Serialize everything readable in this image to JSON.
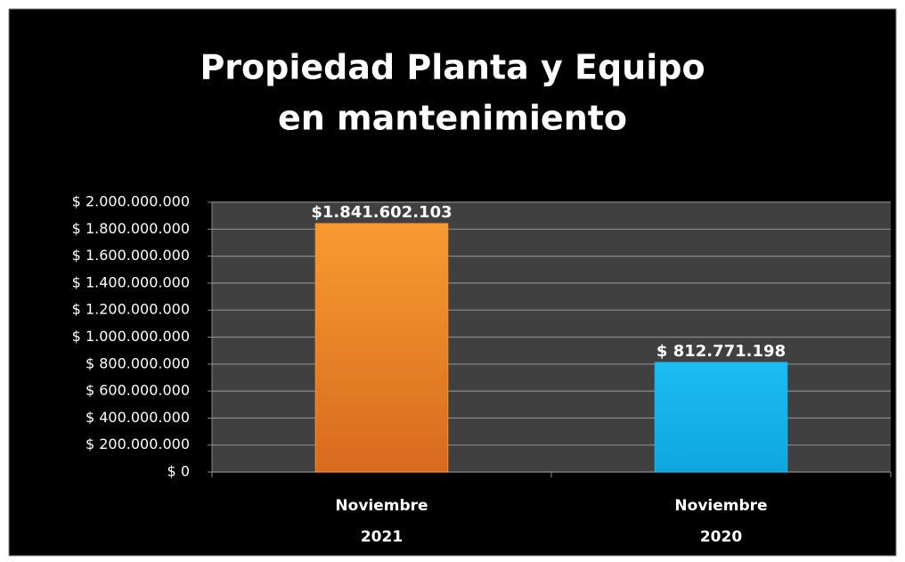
{
  "chart_data": {
    "type": "bar",
    "title": [
      "Propiedad Planta y Equipo",
      "en mantenimiento"
    ],
    "categories": [
      "Noviembre 2021",
      "Noviembre 2020"
    ],
    "values": [
      1841602103,
      812771198
    ],
    "value_labels": [
      "$1.841.602.103",
      "$ 812.771.198"
    ],
    "colors": [
      "#f5922e",
      "#1ab4ee"
    ],
    "ylim": [
      0,
      2000000000
    ],
    "yticks": [
      {
        "value": 0,
        "label": "$ 0"
      },
      {
        "value": 200000000,
        "label": "$ 200.000.000"
      },
      {
        "value": 400000000,
        "label": "$ 400.000.000"
      },
      {
        "value": 600000000,
        "label": "$ 600.000.000"
      },
      {
        "value": 800000000,
        "label": "$ 800.000.000"
      },
      {
        "value": 1000000000,
        "label": "$ 1.000.000.000"
      },
      {
        "value": 1200000000,
        "label": "$ 1.200.000.000"
      },
      {
        "value": 1400000000,
        "label": "$ 1.400.000.000"
      },
      {
        "value": 1600000000,
        "label": "$ 1.600.000.000"
      },
      {
        "value": 1800000000,
        "label": "$ 1.800.000.000"
      },
      {
        "value": 2000000000,
        "label": "$ 2.000.000.000"
      }
    ],
    "grid": true
  }
}
